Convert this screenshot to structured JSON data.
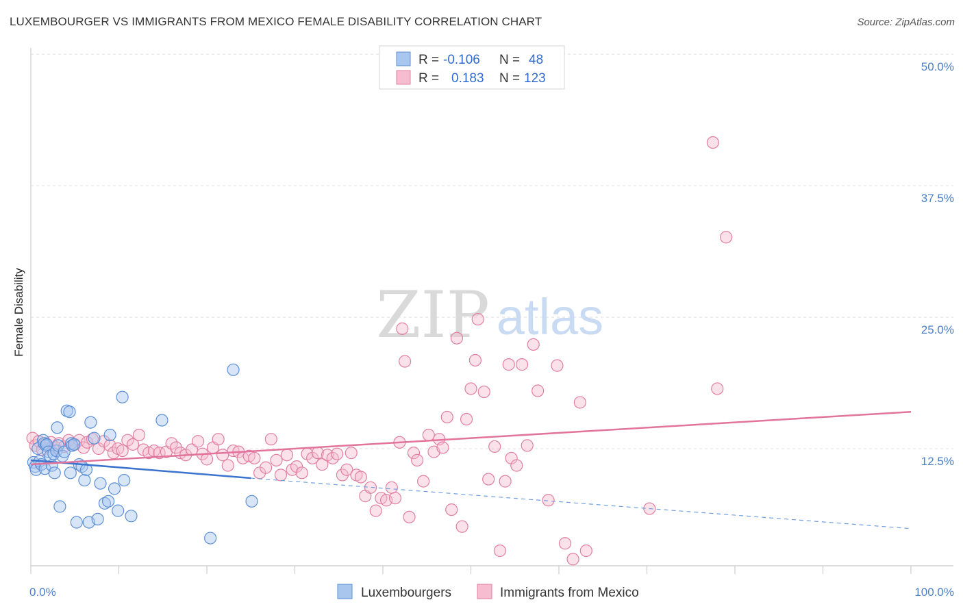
{
  "title": "LUXEMBOURGER VS IMMIGRANTS FROM MEXICO FEMALE DISABILITY CORRELATION CHART",
  "source": "Source: ZipAtlas.com",
  "watermark": {
    "zip": "ZIP",
    "atlas": "atlas"
  },
  "legend": {
    "r_label": "R =",
    "n_label": "N =",
    "rows": [
      {
        "name": "Luxembourgers",
        "r": "-0.106",
        "n": "48",
        "color": "#a9c6ee",
        "stroke": "#5b8fd6"
      },
      {
        "name": "Immigrants from Mexico",
        "r": "0.183",
        "n": "123",
        "color": "#f7bcd0",
        "stroke": "#e07fa0"
      }
    ]
  },
  "chart_data": {
    "type": "scatter",
    "xlabel": "",
    "ylabel": "Female Disability",
    "xlim": [
      0,
      100
    ],
    "ylim": [
      0,
      52
    ],
    "x_tick_labels": [
      "0.0%",
      "100.0%"
    ],
    "y_ticks": [
      12.5,
      25.0,
      37.5,
      50.0
    ],
    "y_tick_labels": [
      "12.5%",
      "25.0%",
      "37.5%",
      "50.0%"
    ],
    "grid": true,
    "series": [
      {
        "name": "Luxembourgers",
        "color": "#5b8fd6",
        "fill": "#a9c6ee",
        "trend": {
          "x": [
            0,
            25
          ],
          "y": [
            11.4,
            9.7
          ],
          "dashed_to": [
            100,
            4.9
          ]
        },
        "points": [
          [
            0.3,
            11.2
          ],
          [
            0.5,
            10.8
          ],
          [
            0.6,
            10.5
          ],
          [
            0.8,
            12.5
          ],
          [
            1.0,
            11.3
          ],
          [
            1.2,
            11.0
          ],
          [
            1.4,
            13.3
          ],
          [
            1.5,
            13.0
          ],
          [
            1.6,
            10.6
          ],
          [
            1.7,
            12.8
          ],
          [
            1.8,
            12.9
          ],
          [
            2.0,
            12.2
          ],
          [
            2.2,
            11.8
          ],
          [
            2.4,
            10.9
          ],
          [
            2.6,
            12.0
          ],
          [
            2.7,
            10.2
          ],
          [
            2.9,
            12.3
          ],
          [
            3.0,
            14.5
          ],
          [
            3.1,
            12.8
          ],
          [
            3.3,
            7.0
          ],
          [
            3.6,
            11.8
          ],
          [
            3.8,
            12.2
          ],
          [
            4.1,
            16.1
          ],
          [
            4.4,
            16.0
          ],
          [
            4.5,
            10.2
          ],
          [
            4.6,
            13.0
          ],
          [
            4.7,
            12.8
          ],
          [
            4.9,
            12.9
          ],
          [
            5.2,
            5.5
          ],
          [
            5.5,
            11.0
          ],
          [
            5.8,
            10.8
          ],
          [
            6.1,
            9.5
          ],
          [
            6.3,
            10.5
          ],
          [
            6.6,
            5.5
          ],
          [
            6.8,
            15.0
          ],
          [
            7.2,
            13.5
          ],
          [
            7.6,
            5.8
          ],
          [
            7.9,
            9.2
          ],
          [
            8.4,
            7.3
          ],
          [
            8.8,
            7.5
          ],
          [
            9.0,
            13.8
          ],
          [
            9.5,
            8.7
          ],
          [
            9.9,
            6.6
          ],
          [
            10.4,
            17.4
          ],
          [
            10.6,
            9.5
          ],
          [
            11.4,
            6.1
          ],
          [
            14.9,
            15.2
          ],
          [
            20.4,
            4.0
          ],
          [
            23.0,
            20.0
          ],
          [
            25.1,
            7.5
          ]
        ]
      },
      {
        "name": "Immigrants from Mexico",
        "color": "#e07fa0",
        "fill": "#f7bcd0",
        "trend": {
          "x": [
            0,
            100
          ],
          "y": [
            11.0,
            16.0
          ]
        },
        "points": [
          [
            0.2,
            13.5
          ],
          [
            0.5,
            12.8
          ],
          [
            0.9,
            13.2
          ],
          [
            1.3,
            12.4
          ],
          [
            1.7,
            13.0
          ],
          [
            2.3,
            13.1
          ],
          [
            2.8,
            12.6
          ],
          [
            3.2,
            13.0
          ],
          [
            3.8,
            12.7
          ],
          [
            4.3,
            13.3
          ],
          [
            5.0,
            12.9
          ],
          [
            5.5,
            13.3
          ],
          [
            6.0,
            12.6
          ],
          [
            6.4,
            13.1
          ],
          [
            7.0,
            13.4
          ],
          [
            7.7,
            12.5
          ],
          [
            8.3,
            13.2
          ],
          [
            9.0,
            12.8
          ],
          [
            9.4,
            12.1
          ],
          [
            9.9,
            12.5
          ],
          [
            10.4,
            12.3
          ],
          [
            11.0,
            13.3
          ],
          [
            11.6,
            12.9
          ],
          [
            12.3,
            13.8
          ],
          [
            12.8,
            12.4
          ],
          [
            13.4,
            12.1
          ],
          [
            14.0,
            12.3
          ],
          [
            14.6,
            12.1
          ],
          [
            15.4,
            12.2
          ],
          [
            16.0,
            13.0
          ],
          [
            16.5,
            12.6
          ],
          [
            17.0,
            12.1
          ],
          [
            17.6,
            11.9
          ],
          [
            18.3,
            12.4
          ],
          [
            19.0,
            13.2
          ],
          [
            19.5,
            12.0
          ],
          [
            20.0,
            11.5
          ],
          [
            20.7,
            12.6
          ],
          [
            21.3,
            13.4
          ],
          [
            21.8,
            11.9
          ],
          [
            22.4,
            10.9
          ],
          [
            23.0,
            12.3
          ],
          [
            23.6,
            12.2
          ],
          [
            24.1,
            11.6
          ],
          [
            24.8,
            11.8
          ],
          [
            25.4,
            11.6
          ],
          [
            26.0,
            10.2
          ],
          [
            26.7,
            10.7
          ],
          [
            27.3,
            13.4
          ],
          [
            27.9,
            11.4
          ],
          [
            28.4,
            10.0
          ],
          [
            29.1,
            11.9
          ],
          [
            29.7,
            10.5
          ],
          [
            30.2,
            10.8
          ],
          [
            30.8,
            10.2
          ],
          [
            31.4,
            12.0
          ],
          [
            32.0,
            11.6
          ],
          [
            32.6,
            12.1
          ],
          [
            33.1,
            11.0
          ],
          [
            33.7,
            11.9
          ],
          [
            34.3,
            11.6
          ],
          [
            34.8,
            12.0
          ],
          [
            35.4,
            10.0
          ],
          [
            35.9,
            10.5
          ],
          [
            36.4,
            12.1
          ],
          [
            37.0,
            10.0
          ],
          [
            37.5,
            9.8
          ],
          [
            38.0,
            8.0
          ],
          [
            38.6,
            8.8
          ],
          [
            39.2,
            6.6
          ],
          [
            39.8,
            7.8
          ],
          [
            40.4,
            7.6
          ],
          [
            41.0,
            8.8
          ],
          [
            41.4,
            7.8
          ],
          [
            41.9,
            13.1
          ],
          [
            42.5,
            20.8
          ],
          [
            42.2,
            23.9
          ],
          [
            43.0,
            6.0
          ],
          [
            43.5,
            12.1
          ],
          [
            43.9,
            11.4
          ],
          [
            44.6,
            9.4
          ],
          [
            45.2,
            13.8
          ],
          [
            45.8,
            12.2
          ],
          [
            46.4,
            13.4
          ],
          [
            46.8,
            12.6
          ],
          [
            47.3,
            15.5
          ],
          [
            47.8,
            6.7
          ],
          [
            48.4,
            23.0
          ],
          [
            49.0,
            5.1
          ],
          [
            49.5,
            15.3
          ],
          [
            50.0,
            18.2
          ],
          [
            50.5,
            20.9
          ],
          [
            50.8,
            24.8
          ],
          [
            51.5,
            17.9
          ],
          [
            52.0,
            9.6
          ],
          [
            52.7,
            12.7
          ],
          [
            53.3,
            2.8
          ],
          [
            53.9,
            9.4
          ],
          [
            54.3,
            20.5
          ],
          [
            54.6,
            11.6
          ],
          [
            55.2,
            10.9
          ],
          [
            55.8,
            20.5
          ],
          [
            56.4,
            12.8
          ],
          [
            57.1,
            22.4
          ],
          [
            57.6,
            18.0
          ],
          [
            58.8,
            7.6
          ],
          [
            59.8,
            20.4
          ],
          [
            60.7,
            3.5
          ],
          [
            61.6,
            2.0
          ],
          [
            62.4,
            16.9
          ],
          [
            63.1,
            2.8
          ],
          [
            70.3,
            6.8
          ],
          [
            77.5,
            41.6
          ],
          [
            78.0,
            18.2
          ],
          [
            79.0,
            32.6
          ]
        ]
      }
    ],
    "bottom_legend": [
      "Luxembourgers",
      "Immigrants from Mexico"
    ]
  }
}
